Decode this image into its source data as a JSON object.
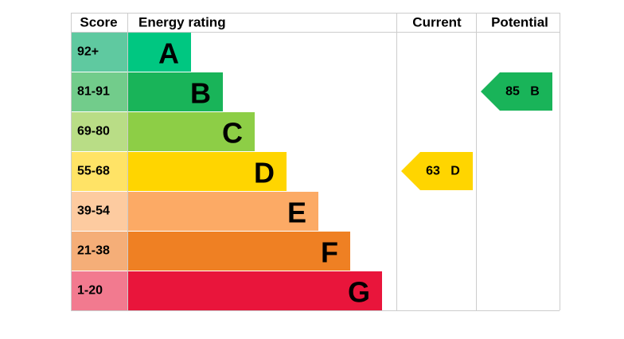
{
  "header": {
    "score": "Score",
    "rating": "Energy rating",
    "current": "Current",
    "potential": "Potential"
  },
  "bands": [
    {
      "score": "92+",
      "letter": "A",
      "color": "#00c781",
      "score_color": "#5fc9a0"
    },
    {
      "score": "81-91",
      "letter": "B",
      "color": "#19b459",
      "score_color": "#72cc8b"
    },
    {
      "score": "69-80",
      "letter": "C",
      "color": "#8dce46",
      "score_color": "#b9dd86"
    },
    {
      "score": "55-68",
      "letter": "D",
      "color": "#ffd500",
      "score_color": "#ffe366"
    },
    {
      "score": "39-54",
      "letter": "E",
      "color": "#fcaa65",
      "score_color": "#fdcba0"
    },
    {
      "score": "21-38",
      "letter": "F",
      "color": "#ef8023",
      "score_color": "#f5ae78"
    },
    {
      "score": "1-20",
      "letter": "G",
      "color": "#e9153b",
      "score_color": "#f27a8f"
    }
  ],
  "current": {
    "value": 63,
    "letter": "D"
  },
  "potential": {
    "value": 85,
    "letter": "B"
  }
}
